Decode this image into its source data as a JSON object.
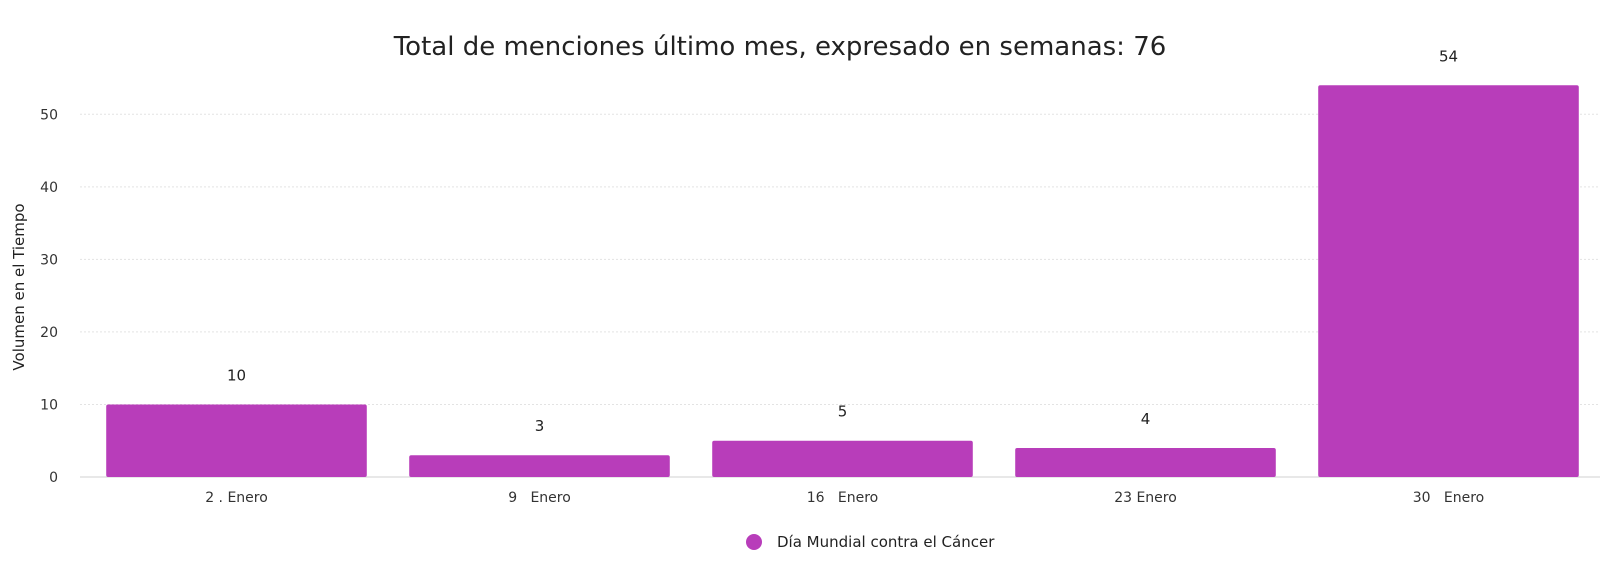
{
  "chart_data": {
    "type": "bar",
    "title": "Total de menciones último mes, expresado en semanas: 76",
    "xlabel": "",
    "ylabel": "Volumen en el Tiempo",
    "categories": [
      "2 . Enero",
      "9   Enero",
      "16   Enero",
      "23 Enero",
      "30   Enero"
    ],
    "series": [
      {
        "name": "Día Mundial contra el Cáncer",
        "values": [
          10,
          3,
          5,
          4,
          54
        ],
        "color": "#b83dba"
      }
    ],
    "data_labels": [
      "10",
      "3",
      "5",
      "4",
      "54"
    ],
    "yticks": [
      0,
      10,
      20,
      30,
      40,
      50
    ],
    "ylim": [
      0,
      55
    ],
    "grid": true,
    "legend_position": "bottom-center"
  }
}
